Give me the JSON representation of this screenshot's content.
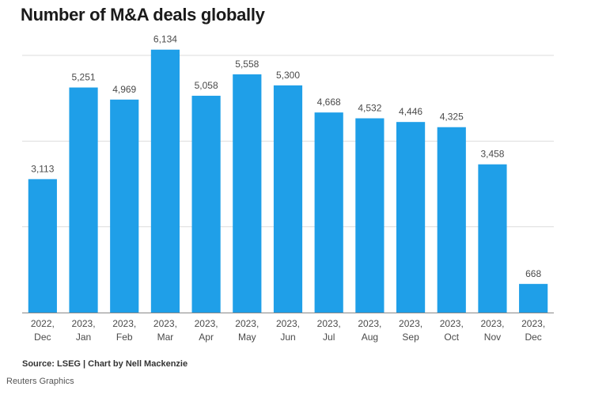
{
  "title": "Number of M&A deals globally",
  "source": "Source: LSEG | Chart by Nell Mackenzie",
  "credit": "Reuters Graphics",
  "colors": {
    "bar": "#1f9fe8",
    "grid": "#dddddd",
    "axis": "#888888"
  },
  "chart_data": {
    "type": "bar",
    "title": "Number of M&A deals globally",
    "categories": [
      [
        "2022,",
        "Dec"
      ],
      [
        "2023,",
        "Jan"
      ],
      [
        "2023,",
        "Feb"
      ],
      [
        "2023,",
        "Mar"
      ],
      [
        "2023,",
        "Apr"
      ],
      [
        "2023,",
        "May"
      ],
      [
        "2023,",
        "Jun"
      ],
      [
        "2023,",
        "Jul"
      ],
      [
        "2023,",
        "Aug"
      ],
      [
        "2023,",
        "Sep"
      ],
      [
        "2023,",
        "Oct"
      ],
      [
        "2023,",
        "Nov"
      ],
      [
        "2023,",
        "Dec"
      ]
    ],
    "values": [
      3113,
      5251,
      4969,
      6134,
      5058,
      5558,
      5300,
      4668,
      4532,
      4446,
      4325,
      3458,
      668
    ],
    "value_labels": [
      "3,113",
      "5,251",
      "4,969",
      "6,134",
      "5,058",
      "5,558",
      "5,300",
      "4,668",
      "4,532",
      "4,446",
      "4,325",
      "3,458",
      "668"
    ],
    "xlabel": "",
    "ylabel": "",
    "ylim": [
      0,
      6000
    ],
    "grid": true,
    "legend": "none"
  }
}
